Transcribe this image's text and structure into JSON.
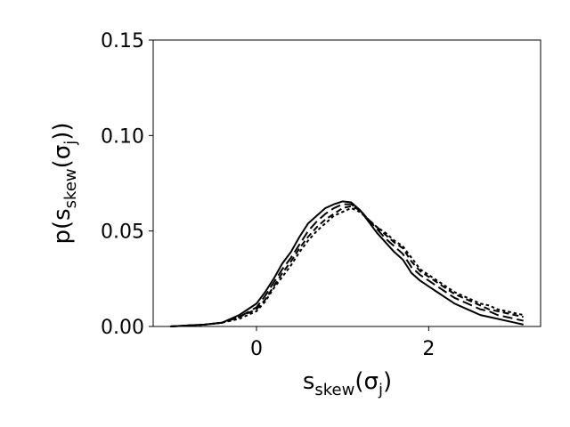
{
  "chart_data": {
    "type": "line",
    "xlabel": {
      "base": "s",
      "sub": "skew",
      "open": "(σ",
      "inner_sub": "j",
      "close": ")"
    },
    "ylabel": {
      "base": "p(s",
      "sub": "skew",
      "open": "(σ",
      "inner_sub": "j",
      "close": "))"
    },
    "xlim": [
      -1.2,
      3.3
    ],
    "ylim": [
      0,
      0.15
    ],
    "xticks": [
      0,
      2
    ],
    "xtick_labels": [
      "0",
      "2"
    ],
    "yticks": [
      0,
      0.05,
      0.1,
      0.15
    ],
    "ytick_labels": [
      "0.00",
      "0.05",
      "0.10",
      "0.15"
    ],
    "grid": false,
    "line_color": "#000000",
    "series": [
      {
        "dash": "solid",
        "x": [
          -1.0,
          -0.8,
          -0.6,
          -0.4,
          -0.2,
          0.0,
          0.1,
          0.2,
          0.3,
          0.4,
          0.5,
          0.6,
          0.7,
          0.8,
          0.9,
          1.0,
          1.1,
          1.2,
          1.3,
          1.4,
          1.5,
          1.6,
          1.7,
          1.8,
          1.9,
          2.0,
          2.1,
          2.2,
          2.3,
          2.4,
          2.5,
          2.6,
          2.7,
          2.8,
          2.9,
          3.0,
          3.1
        ],
        "y": [
          0.0,
          0.0005,
          0.001,
          0.002,
          0.006,
          0.012,
          0.018,
          0.025,
          0.033,
          0.039,
          0.047,
          0.054,
          0.058,
          0.062,
          0.064,
          0.0655,
          0.065,
          0.061,
          0.055,
          0.049,
          0.044,
          0.039,
          0.035,
          0.028,
          0.024,
          0.021,
          0.018,
          0.015,
          0.012,
          0.01,
          0.008,
          0.006,
          0.005,
          0.004,
          0.003,
          0.002,
          0.001
        ]
      },
      {
        "dash": "long",
        "x": [
          -1.0,
          -0.8,
          -0.6,
          -0.4,
          -0.2,
          0.0,
          0.1,
          0.2,
          0.3,
          0.4,
          0.5,
          0.6,
          0.7,
          0.8,
          0.9,
          1.0,
          1.1,
          1.2,
          1.3,
          1.4,
          1.5,
          1.6,
          1.7,
          1.8,
          1.9,
          2.0,
          2.1,
          2.2,
          2.3,
          2.4,
          2.5,
          2.6,
          2.7,
          2.8,
          2.9,
          3.0,
          3.1
        ],
        "y": [
          0.0,
          0.0005,
          0.001,
          0.002,
          0.005,
          0.01,
          0.016,
          0.023,
          0.03,
          0.036,
          0.043,
          0.05,
          0.055,
          0.059,
          0.062,
          0.064,
          0.064,
          0.061,
          0.056,
          0.051,
          0.046,
          0.042,
          0.038,
          0.031,
          0.027,
          0.024,
          0.021,
          0.018,
          0.015,
          0.013,
          0.011,
          0.009,
          0.008,
          0.006,
          0.005,
          0.004,
          0.003
        ]
      },
      {
        "dash": "medium",
        "x": [
          -1.0,
          -0.8,
          -0.6,
          -0.4,
          -0.2,
          0.0,
          0.1,
          0.2,
          0.3,
          0.4,
          0.5,
          0.6,
          0.7,
          0.8,
          0.9,
          1.0,
          1.1,
          1.2,
          1.3,
          1.4,
          1.5,
          1.6,
          1.7,
          1.8,
          1.9,
          2.0,
          2.1,
          2.2,
          2.3,
          2.4,
          2.5,
          2.6,
          2.7,
          2.8,
          2.9,
          3.0,
          3.1
        ],
        "y": [
          0.0,
          0.0005,
          0.001,
          0.002,
          0.005,
          0.009,
          0.014,
          0.021,
          0.028,
          0.034,
          0.041,
          0.047,
          0.052,
          0.056,
          0.059,
          0.062,
          0.063,
          0.061,
          0.056,
          0.052,
          0.048,
          0.044,
          0.041,
          0.034,
          0.029,
          0.026,
          0.023,
          0.02,
          0.017,
          0.015,
          0.013,
          0.011,
          0.009,
          0.008,
          0.007,
          0.006,
          0.005
        ]
      },
      {
        "dash": "short",
        "x": [
          -1.0,
          -0.8,
          -0.6,
          -0.4,
          -0.2,
          0.0,
          0.1,
          0.2,
          0.3,
          0.4,
          0.5,
          0.6,
          0.7,
          0.8,
          0.9,
          1.0,
          1.1,
          1.2,
          1.3,
          1.4,
          1.5,
          1.6,
          1.7,
          1.8,
          1.9,
          2.0,
          2.1,
          2.2,
          2.3,
          2.4,
          2.5,
          2.6,
          2.7,
          2.8,
          2.9,
          3.0,
          3.1
        ],
        "y": [
          0.0,
          0.0005,
          0.001,
          0.002,
          0.004,
          0.008,
          0.013,
          0.02,
          0.026,
          0.032,
          0.039,
          0.045,
          0.05,
          0.054,
          0.058,
          0.06,
          0.062,
          0.06,
          0.056,
          0.052,
          0.049,
          0.045,
          0.042,
          0.036,
          0.03,
          0.027,
          0.024,
          0.021,
          0.018,
          0.016,
          0.014,
          0.012,
          0.011,
          0.009,
          0.008,
          0.007,
          0.006
        ]
      }
    ]
  }
}
